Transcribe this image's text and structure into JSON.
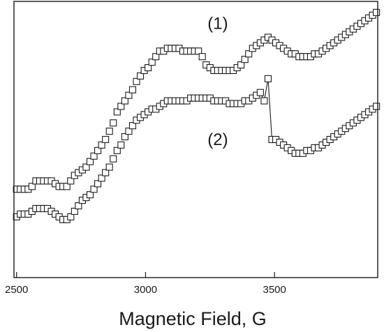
{
  "chart_data": {
    "type": "scatter",
    "title": "",
    "xlabel": "Magnetic Field, G",
    "ylabel": "",
    "xlim": [
      2490,
      3900
    ],
    "ylim": [
      0,
      100
    ],
    "x_ticks": [
      2500,
      3000,
      3500
    ],
    "x_tick_labels": [
      "2500",
      "3000",
      "3500"
    ],
    "grid": false,
    "marker": "open-square",
    "series": [
      {
        "name": "(1)",
        "points": [
          [
            2500,
            32
          ],
          [
            2515,
            32
          ],
          [
            2530,
            32
          ],
          [
            2545,
            32
          ],
          [
            2560,
            33
          ],
          [
            2575,
            35
          ],
          [
            2590,
            35
          ],
          [
            2605,
            35
          ],
          [
            2620,
            35
          ],
          [
            2635,
            35
          ],
          [
            2650,
            34
          ],
          [
            2665,
            33
          ],
          [
            2680,
            33
          ],
          [
            2695,
            33
          ],
          [
            2710,
            35
          ],
          [
            2725,
            37
          ],
          [
            2740,
            38
          ],
          [
            2755,
            39
          ],
          [
            2770,
            40
          ],
          [
            2785,
            42
          ],
          [
            2800,
            44
          ],
          [
            2815,
            46
          ],
          [
            2830,
            48
          ],
          [
            2845,
            50
          ],
          [
            2860,
            53
          ],
          [
            2875,
            56
          ],
          [
            2890,
            60
          ],
          [
            2905,
            62
          ],
          [
            2920,
            64
          ],
          [
            2935,
            66
          ],
          [
            2950,
            68
          ],
          [
            2965,
            71
          ],
          [
            2980,
            73
          ],
          [
            2995,
            75
          ],
          [
            3010,
            76
          ],
          [
            3025,
            78
          ],
          [
            3040,
            80
          ],
          [
            3055,
            82
          ],
          [
            3070,
            82
          ],
          [
            3085,
            83
          ],
          [
            3100,
            83
          ],
          [
            3115,
            83
          ],
          [
            3130,
            83
          ],
          [
            3145,
            82
          ],
          [
            3160,
            82
          ],
          [
            3175,
            82
          ],
          [
            3190,
            82
          ],
          [
            3205,
            82
          ],
          [
            3220,
            80
          ],
          [
            3235,
            77
          ],
          [
            3250,
            76
          ],
          [
            3265,
            75
          ],
          [
            3280,
            75
          ],
          [
            3295,
            75
          ],
          [
            3310,
            75
          ],
          [
            3325,
            75
          ],
          [
            3340,
            75
          ],
          [
            3355,
            76
          ],
          [
            3370,
            77
          ],
          [
            3385,
            79
          ],
          [
            3400,
            81
          ],
          [
            3415,
            83
          ],
          [
            3430,
            84
          ],
          [
            3445,
            85
          ],
          [
            3460,
            86
          ],
          [
            3475,
            87
          ],
          [
            3490,
            86
          ],
          [
            3505,
            85
          ],
          [
            3520,
            84
          ],
          [
            3535,
            83
          ],
          [
            3550,
            82
          ],
          [
            3565,
            81
          ],
          [
            3580,
            81
          ],
          [
            3595,
            80
          ],
          [
            3610,
            80
          ],
          [
            3625,
            80
          ],
          [
            3640,
            80
          ],
          [
            3655,
            81
          ],
          [
            3670,
            81
          ],
          [
            3685,
            82
          ],
          [
            3700,
            83
          ],
          [
            3715,
            84
          ],
          [
            3730,
            85
          ],
          [
            3745,
            86
          ],
          [
            3760,
            87
          ],
          [
            3775,
            88
          ],
          [
            3790,
            89
          ],
          [
            3805,
            90
          ],
          [
            3820,
            91
          ],
          [
            3835,
            92
          ],
          [
            3850,
            93
          ],
          [
            3865,
            94
          ],
          [
            3880,
            95
          ],
          [
            3895,
            96
          ]
        ]
      },
      {
        "name": "(2)",
        "points": [
          [
            2500,
            22
          ],
          [
            2515,
            23
          ],
          [
            2530,
            23
          ],
          [
            2545,
            23
          ],
          [
            2560,
            24
          ],
          [
            2575,
            25
          ],
          [
            2590,
            25
          ],
          [
            2605,
            25
          ],
          [
            2620,
            25
          ],
          [
            2635,
            24
          ],
          [
            2650,
            23
          ],
          [
            2665,
            22
          ],
          [
            2680,
            21
          ],
          [
            2695,
            21
          ],
          [
            2710,
            22
          ],
          [
            2725,
            24
          ],
          [
            2740,
            26
          ],
          [
            2755,
            28
          ],
          [
            2770,
            29
          ],
          [
            2785,
            30
          ],
          [
            2800,
            32
          ],
          [
            2815,
            34
          ],
          [
            2830,
            36
          ],
          [
            2845,
            38
          ],
          [
            2860,
            40
          ],
          [
            2875,
            43
          ],
          [
            2890,
            46
          ],
          [
            2905,
            48
          ],
          [
            2920,
            51
          ],
          [
            2935,
            53
          ],
          [
            2950,
            55
          ],
          [
            2965,
            57
          ],
          [
            2980,
            58
          ],
          [
            2995,
            59
          ],
          [
            3010,
            60
          ],
          [
            3025,
            61
          ],
          [
            3040,
            61
          ],
          [
            3055,
            62
          ],
          [
            3070,
            63
          ],
          [
            3085,
            64
          ],
          [
            3100,
            64
          ],
          [
            3115,
            64
          ],
          [
            3130,
            64
          ],
          [
            3145,
            64
          ],
          [
            3160,
            64
          ],
          [
            3175,
            65
          ],
          [
            3190,
            65
          ],
          [
            3205,
            65
          ],
          [
            3220,
            65
          ],
          [
            3235,
            65
          ],
          [
            3250,
            65
          ],
          [
            3265,
            64
          ],
          [
            3280,
            64
          ],
          [
            3295,
            64
          ],
          [
            3310,
            64
          ],
          [
            3325,
            63
          ],
          [
            3340,
            63
          ],
          [
            3355,
            63
          ],
          [
            3370,
            63
          ],
          [
            3385,
            64
          ],
          [
            3400,
            64
          ],
          [
            3415,
            65
          ],
          [
            3430,
            66
          ],
          [
            3445,
            67
          ],
          [
            3460,
            64
          ],
          [
            3475,
            72
          ],
          [
            3490,
            50
          ],
          [
            3505,
            50
          ],
          [
            3520,
            49
          ],
          [
            3535,
            48
          ],
          [
            3550,
            47
          ],
          [
            3565,
            46
          ],
          [
            3580,
            45
          ],
          [
            3595,
            45
          ],
          [
            3610,
            45
          ],
          [
            3625,
            46
          ],
          [
            3640,
            46
          ],
          [
            3655,
            47
          ],
          [
            3670,
            47
          ],
          [
            3685,
            48
          ],
          [
            3700,
            49
          ],
          [
            3715,
            50
          ],
          [
            3730,
            51
          ],
          [
            3745,
            52
          ],
          [
            3760,
            53
          ],
          [
            3775,
            54
          ],
          [
            3790,
            55
          ],
          [
            3805,
            56
          ],
          [
            3820,
            57
          ],
          [
            3835,
            58
          ],
          [
            3850,
            59
          ],
          [
            3865,
            60
          ],
          [
            3880,
            61
          ],
          [
            3895,
            62
          ]
        ]
      }
    ],
    "annotations": [
      {
        "text": "(1)",
        "x": 3280,
        "y": 90
      },
      {
        "text": "(2)",
        "x": 3280,
        "y": 48
      }
    ]
  }
}
